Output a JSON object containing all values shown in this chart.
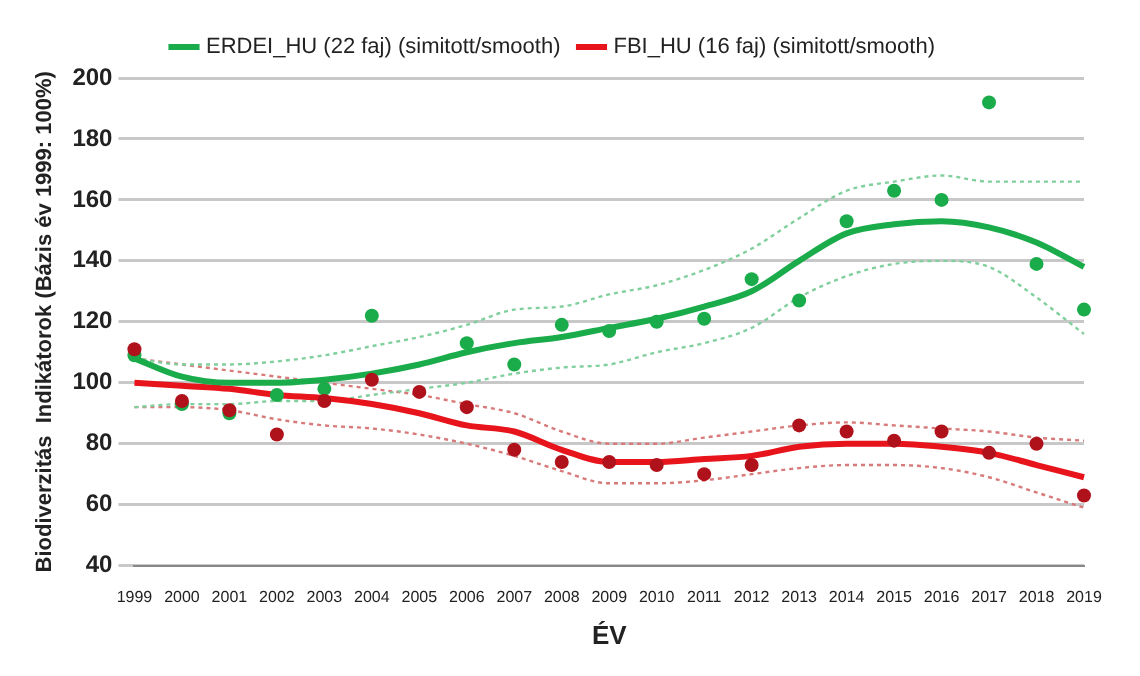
{
  "chart_data": {
    "type": "line",
    "xlabel": "ÉV",
    "ylabel": "Biodiverzitás  Indikátorok (Bázis év 1999: 100%)",
    "categories": [
      "1999",
      "2000",
      "2001",
      "2002",
      "2003",
      "2004",
      "2005",
      "2006",
      "2007",
      "2008",
      "2009",
      "2010",
      "2011",
      "2012",
      "2013",
      "2014",
      "2015",
      "2016",
      "2017",
      "2018",
      "2019"
    ],
    "ylim": [
      40,
      200
    ],
    "yticks": [
      40,
      60,
      80,
      100,
      120,
      140,
      160,
      180,
      200
    ],
    "grid": "y",
    "legend": "top",
    "marker": "none",
    "series": [
      {
        "name": "ERDEI_HU (22 faj) (simitott/smooth)",
        "color": "#1aab4b",
        "values": [
          108,
          102,
          100,
          100,
          101,
          103,
          106,
          110,
          113,
          115,
          118,
          121,
          125,
          130,
          140,
          149,
          152,
          153,
          151,
          146,
          138
        ]
      },
      {
        "name": "FBI_HU (16 faj) (simitott/smooth)",
        "color": "#e8141c",
        "values": [
          100,
          99,
          98,
          96,
          95,
          93,
          90,
          86,
          84,
          78,
          74,
          74,
          75,
          76,
          79,
          80,
          80,
          79,
          77,
          73,
          69
        ]
      },
      {
        "line_style": "dotted",
        "color": "#80cf9c",
        "values": [
          92,
          93,
          93,
          94,
          94,
          96,
          98,
          100,
          103,
          105,
          106,
          110,
          113,
          118,
          128,
          135,
          139,
          140,
          138,
          128,
          116
        ]
      },
      {
        "line_style": "dotted",
        "color": "#80cf9c",
        "values": [
          108,
          106,
          106,
          107,
          109,
          112,
          115,
          119,
          124,
          125,
          129,
          132,
          137,
          144,
          154,
          163,
          166,
          168,
          166,
          166,
          166
        ]
      },
      {
        "line_style": "dotted",
        "color": "#d87a7a",
        "values": [
          92,
          92,
          91,
          88,
          86,
          85,
          83,
          80,
          76,
          71,
          67,
          67,
          68,
          70,
          72,
          73,
          73,
          72,
          69,
          64,
          59
        ]
      },
      {
        "line_style": "dotted",
        "color": "#d87a7a",
        "values": [
          108,
          106,
          104,
          102,
          100,
          98,
          96,
          93,
          90,
          84,
          80,
          80,
          82,
          84,
          86,
          87,
          86,
          85,
          84,
          82,
          81
        ]
      },
      {
        "type": "scatter",
        "marker": "circle",
        "color": "#1aab4b",
        "values": [
          109,
          93,
          90,
          96,
          98,
          122,
          null,
          113,
          106,
          119,
          117,
          120,
          121,
          134,
          127,
          153,
          163,
          160,
          192,
          139,
          124
        ]
      },
      {
        "type": "scatter",
        "marker": "circle",
        "color": "#b0121b",
        "values": [
          111,
          94,
          91,
          83,
          94,
          101,
          97,
          92,
          78,
          74,
          74,
          73,
          70,
          73,
          86,
          84,
          81,
          84,
          77,
          80,
          63
        ]
      }
    ]
  }
}
